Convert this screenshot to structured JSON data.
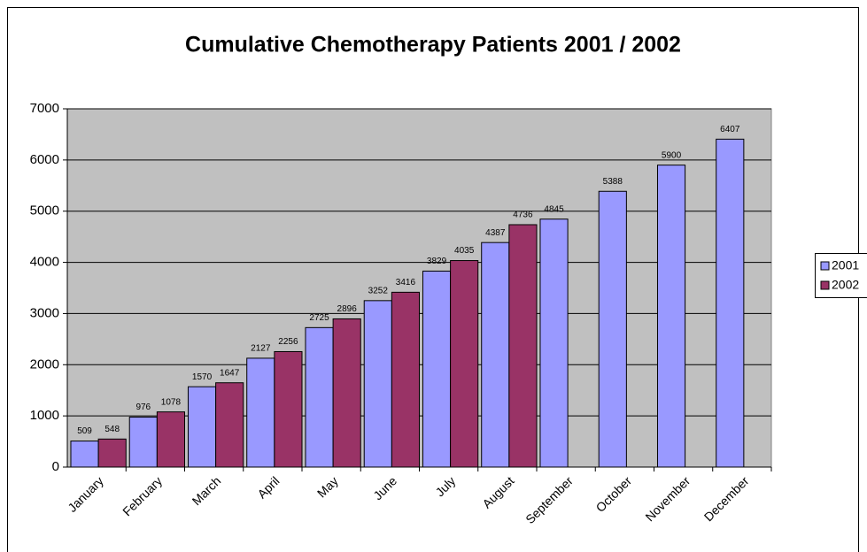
{
  "chart_data": {
    "type": "bar",
    "title": "Cumulative Chemotherapy Patients 2001 / 2002",
    "categories": [
      "January",
      "February",
      "March",
      "April",
      "May",
      "June",
      "July",
      "August",
      "September",
      "October",
      "November",
      "December"
    ],
    "series": [
      {
        "name": "2001",
        "color": "#9999ff",
        "values": [
          509,
          976,
          1570,
          2127,
          2725,
          3252,
          3829,
          4387,
          4845,
          5388,
          5900,
          6407
        ]
      },
      {
        "name": "2002",
        "color": "#993366",
        "values": [
          548,
          1078,
          1647,
          2256,
          2896,
          3416,
          4035,
          4736,
          null,
          null,
          null,
          null
        ]
      }
    ],
    "ylim": [
      0,
      7000
    ],
    "yticks": [
      0,
      1000,
      2000,
      3000,
      4000,
      5000,
      6000,
      7000
    ],
    "grid": true,
    "legend": "right"
  }
}
